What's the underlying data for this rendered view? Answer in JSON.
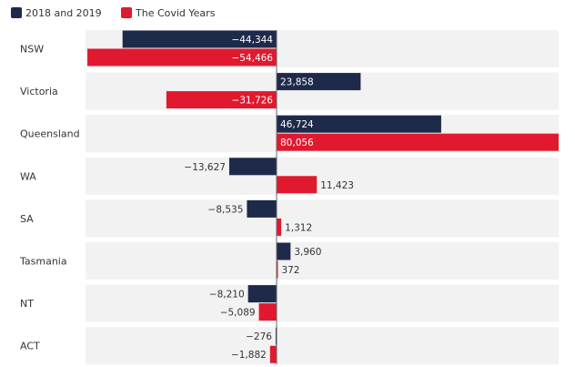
{
  "chart_data": {
    "type": "bar",
    "orientation": "horizontal",
    "categories": [
      "NSW",
      "Victoria",
      "Queensland",
      "WA",
      "SA",
      "Tasmania",
      "NT",
      "ACT"
    ],
    "series": [
      {
        "name": "2018 and 2019",
        "color": "#1e2a4a",
        "values": [
          -44344,
          23858,
          46724,
          -13627,
          -8535,
          3960,
          -8210,
          -276
        ]
      },
      {
        "name": "The Covid Years",
        "color": "#e0192f",
        "values": [
          -54466,
          -31726,
          80056,
          11423,
          1312,
          372,
          -5089,
          -1882
        ]
      }
    ],
    "value_labels": [
      [
        "−44,344",
        "23,858",
        "46,724",
        "−13,627",
        "−8,535",
        "3,960",
        "−8,210",
        "−276"
      ],
      [
        "−54,466",
        "−31,726",
        "80,056",
        "11,423",
        "1,312",
        "372",
        "−5,089",
        "−1,882"
      ]
    ],
    "xlim": [
      -55000,
      80056
    ],
    "legend_position": "top-left",
    "grid": false,
    "row_band_color": "#f2f2f2"
  }
}
